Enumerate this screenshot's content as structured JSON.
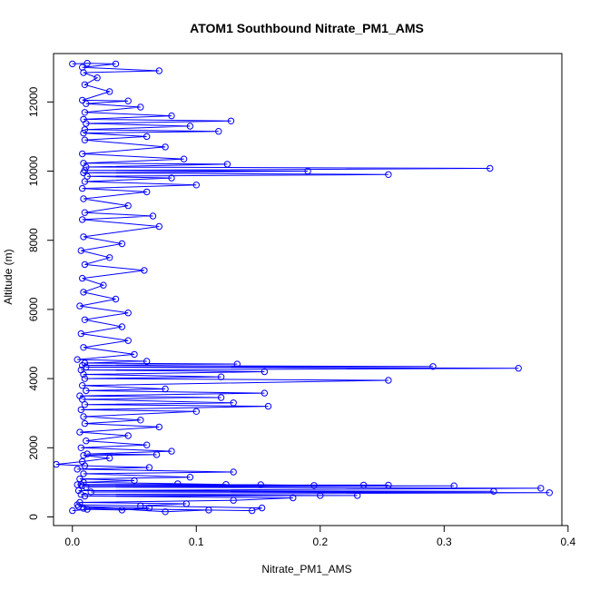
{
  "chart_data": {
    "type": "line",
    "title": "ATOM1 Southbound Nitrate_PM1_AMS",
    "xlabel": "Nitrate_PM1_AMS",
    "ylabel": "Altitude (m)",
    "xlim": [
      -0.0152,
      0.395
    ],
    "ylim": [
      -250,
      13400
    ],
    "xticks": [
      0.0,
      0.1,
      0.2,
      0.3,
      0.4
    ],
    "xtick_labels": [
      "0.0",
      "0.1",
      "0.2",
      "0.3",
      "0.4"
    ],
    "yticks": [
      0,
      2000,
      4000,
      6000,
      8000,
      10000,
      12000
    ],
    "ytick_labels": [
      "0",
      "2000",
      "4000",
      "6000",
      "8000",
      "10000",
      "12000"
    ],
    "series_color": "#0000ff",
    "marker": "open-circle",
    "grid": false,
    "legend": "none",
    "series": [
      {
        "points": [
          [
            0.0,
            180
          ],
          [
            0.012,
            220
          ],
          [
            0.04,
            200
          ],
          [
            0.062,
            260
          ],
          [
            0.005,
            300
          ],
          [
            0.075,
            150
          ],
          [
            0.11,
            200
          ],
          [
            0.009,
            250
          ],
          [
            0.145,
            180
          ],
          [
            0.153,
            260
          ],
          [
            0.004,
            350
          ],
          [
            0.055,
            320
          ],
          [
            0.092,
            380
          ],
          [
            0.006,
            420
          ],
          [
            0.13,
            480
          ],
          [
            0.178,
            550
          ],
          [
            0.01,
            600
          ],
          [
            0.23,
            620
          ],
          [
            0.2,
            620
          ],
          [
            0.007,
            650
          ],
          [
            0.385,
            700
          ],
          [
            0.015,
            720
          ],
          [
            0.34,
            740
          ],
          [
            0.005,
            760
          ],
          [
            0.378,
            830
          ],
          [
            0.011,
            860
          ],
          [
            0.308,
            900
          ],
          [
            0.008,
            900
          ],
          [
            0.255,
            920
          ],
          [
            0.004,
            930
          ],
          [
            0.235,
            920
          ],
          [
            0.195,
            910
          ],
          [
            0.152,
            930
          ],
          [
            0.007,
            940
          ],
          [
            0.124,
            940
          ],
          [
            0.085,
            960
          ],
          [
            0.009,
            1000
          ],
          [
            0.05,
            1050
          ],
          [
            0.006,
            1100
          ],
          [
            0.095,
            1150
          ],
          [
            0.009,
            1250
          ],
          [
            0.13,
            1300
          ],
          [
            0.004,
            1380
          ],
          [
            0.062,
            1430
          ],
          [
            0.01,
            1480
          ],
          [
            -0.013,
            1520
          ],
          [
            0.008,
            1600
          ],
          [
            0.03,
            1700
          ],
          [
            0.009,
            1780
          ],
          [
            0.068,
            1800
          ],
          [
            0.012,
            1820
          ],
          [
            0.08,
            1900
          ],
          [
            0.007,
            2000
          ],
          [
            0.06,
            2080
          ],
          [
            0.011,
            2200
          ],
          [
            0.045,
            2350
          ],
          [
            0.006,
            2450
          ],
          [
            0.07,
            2600
          ],
          [
            0.01,
            2700
          ],
          [
            0.055,
            2800
          ],
          [
            0.009,
            2900
          ],
          [
            0.1,
            3050
          ],
          [
            0.007,
            3100
          ],
          [
            0.158,
            3200
          ],
          [
            0.01,
            3250
          ],
          [
            0.13,
            3300
          ],
          [
            0.008,
            3400
          ],
          [
            0.12,
            3450
          ],
          [
            0.006,
            3500
          ],
          [
            0.155,
            3580
          ],
          [
            0.011,
            3650
          ],
          [
            0.075,
            3700
          ],
          [
            0.008,
            3800
          ],
          [
            0.255,
            3950
          ],
          [
            0.01,
            4000
          ],
          [
            0.12,
            4050
          ],
          [
            0.009,
            4120
          ],
          [
            0.155,
            4200
          ],
          [
            0.007,
            4250
          ],
          [
            0.36,
            4300
          ],
          [
            0.011,
            4330
          ],
          [
            0.291,
            4350
          ],
          [
            0.008,
            4380
          ],
          [
            0.133,
            4420
          ],
          [
            0.01,
            4450
          ],
          [
            0.06,
            4500
          ],
          [
            0.004,
            4550
          ],
          [
            0.05,
            4700
          ],
          [
            0.009,
            4900
          ],
          [
            0.045,
            5100
          ],
          [
            0.007,
            5300
          ],
          [
            0.04,
            5500
          ],
          [
            0.01,
            5700
          ],
          [
            0.045,
            5900
          ],
          [
            0.006,
            6100
          ],
          [
            0.035,
            6300
          ],
          [
            0.009,
            6500
          ],
          [
            0.025,
            6700
          ],
          [
            0.008,
            6900
          ],
          [
            0.058,
            7130
          ],
          [
            0.01,
            7300
          ],
          [
            0.03,
            7500
          ],
          [
            0.007,
            7700
          ],
          [
            0.04,
            7900
          ],
          [
            0.009,
            8100
          ],
          [
            0.07,
            8400
          ],
          [
            0.008,
            8600
          ],
          [
            0.065,
            8700
          ],
          [
            0.01,
            8800
          ],
          [
            0.045,
            9000
          ],
          [
            0.009,
            9200
          ],
          [
            0.06,
            9400
          ],
          [
            0.008,
            9500
          ],
          [
            0.1,
            9600
          ],
          [
            0.01,
            9700
          ],
          [
            0.08,
            9800
          ],
          [
            0.012,
            9850
          ],
          [
            0.255,
            9900
          ],
          [
            0.009,
            9950
          ],
          [
            0.19,
            10000
          ],
          [
            0.01,
            10020
          ],
          [
            0.337,
            10080
          ],
          [
            0.011,
            10120
          ],
          [
            0.125,
            10200
          ],
          [
            0.009,
            10230
          ],
          [
            0.09,
            10350
          ],
          [
            0.008,
            10500
          ],
          [
            0.075,
            10700
          ],
          [
            0.01,
            10900
          ],
          [
            0.06,
            11000
          ],
          [
            0.009,
            11100
          ],
          [
            0.118,
            11150
          ],
          [
            0.01,
            11200
          ],
          [
            0.095,
            11300
          ],
          [
            0.011,
            11380
          ],
          [
            0.128,
            11450
          ],
          [
            0.009,
            11500
          ],
          [
            0.08,
            11600
          ],
          [
            0.01,
            11700
          ],
          [
            0.055,
            11850
          ],
          [
            0.011,
            11950
          ],
          [
            0.045,
            12030
          ],
          [
            0.008,
            12050
          ],
          [
            0.03,
            12300
          ],
          [
            0.01,
            12500
          ],
          [
            0.02,
            12700
          ],
          [
            0.009,
            12850
          ],
          [
            0.07,
            12900
          ],
          [
            0.008,
            13000
          ],
          [
            0.035,
            13100
          ],
          [
            0.012,
            13120
          ],
          [
            0.0,
            13100
          ]
        ]
      }
    ]
  }
}
